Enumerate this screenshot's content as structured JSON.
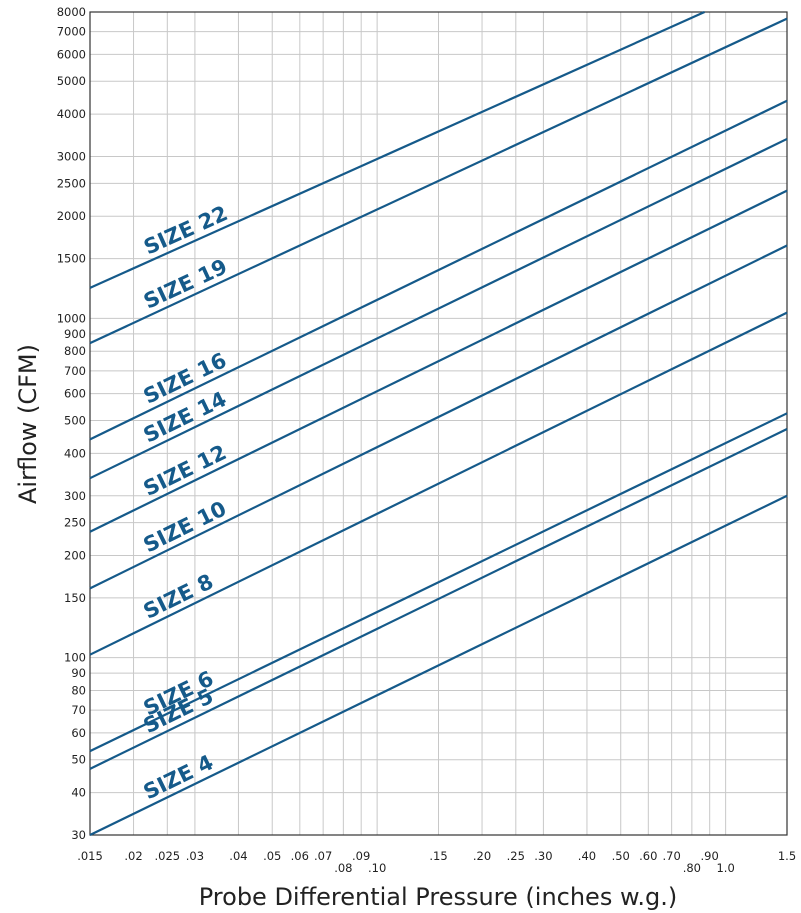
{
  "chart_data": {
    "type": "line",
    "title": "",
    "xlabel": "Probe Differential Pressure (inches w.g.)",
    "ylabel": "Airflow (CFM)",
    "x_scale": "log",
    "y_scale": "log",
    "xlim": [
      0.015,
      1.5
    ],
    "ylim": [
      30,
      8000
    ],
    "grid": true,
    "legend": "none",
    "line_color": "#155a8a",
    "grid_color": "#c8c8c8",
    "x_ticks": [
      {
        "value": 0.015,
        "label": ".015",
        "row": 1
      },
      {
        "value": 0.02,
        "label": ".02",
        "row": 1
      },
      {
        "value": 0.025,
        "label": ".025",
        "row": 1
      },
      {
        "value": 0.03,
        "label": ".03",
        "row": 1
      },
      {
        "value": 0.04,
        "label": ".04",
        "row": 1
      },
      {
        "value": 0.05,
        "label": ".05",
        "row": 1
      },
      {
        "value": 0.06,
        "label": ".06",
        "row": 1
      },
      {
        "value": 0.07,
        "label": ".07",
        "row": 1
      },
      {
        "value": 0.08,
        "label": ".08",
        "row": 2
      },
      {
        "value": 0.09,
        "label": ".09",
        "row": 1
      },
      {
        "value": 0.1,
        "label": ".10",
        "row": 2
      },
      {
        "value": 0.15,
        "label": ".15",
        "row": 1
      },
      {
        "value": 0.2,
        "label": ".20",
        "row": 1
      },
      {
        "value": 0.25,
        "label": ".25",
        "row": 1
      },
      {
        "value": 0.3,
        "label": ".30",
        "row": 1
      },
      {
        "value": 0.4,
        "label": ".40",
        "row": 1
      },
      {
        "value": 0.5,
        "label": ".50",
        "row": 1
      },
      {
        "value": 0.6,
        "label": ".60",
        "row": 1
      },
      {
        "value": 0.7,
        "label": ".70",
        "row": 1
      },
      {
        "value": 0.8,
        "label": ".80",
        "row": 2
      },
      {
        "value": 0.9,
        "label": ".90",
        "row": 1
      },
      {
        "value": 1.0,
        "label": "1.0",
        "row": 2
      },
      {
        "value": 1.5,
        "label": "1.5",
        "row": 1
      }
    ],
    "y_ticks": [
      {
        "value": 30,
        "label": "30"
      },
      {
        "value": 40,
        "label": "40"
      },
      {
        "value": 50,
        "label": "50"
      },
      {
        "value": 60,
        "label": "60"
      },
      {
        "value": 70,
        "label": "70"
      },
      {
        "value": 80,
        "label": "80"
      },
      {
        "value": 90,
        "label": "90"
      },
      {
        "value": 100,
        "label": "100"
      },
      {
        "value": 150,
        "label": "150"
      },
      {
        "value": 200,
        "label": "200"
      },
      {
        "value": 250,
        "label": "250"
      },
      {
        "value": 300,
        "label": "300"
      },
      {
        "value": 400,
        "label": "400"
      },
      {
        "value": 500,
        "label": "500"
      },
      {
        "value": 600,
        "label": "600"
      },
      {
        "value": 700,
        "label": "700"
      },
      {
        "value": 800,
        "label": "800"
      },
      {
        "value": 900,
        "label": "900"
      },
      {
        "value": 1000,
        "label": "1000"
      },
      {
        "value": 1500,
        "label": "1500"
      },
      {
        "value": 2000,
        "label": "2000"
      },
      {
        "value": 2500,
        "label": "2500"
      },
      {
        "value": 3000,
        "label": "3000"
      },
      {
        "value": 4000,
        "label": "4000"
      },
      {
        "value": 5000,
        "label": "5000"
      },
      {
        "value": 6000,
        "label": "6000"
      },
      {
        "value": 7000,
        "label": "7000"
      },
      {
        "value": 8000,
        "label": "8000"
      }
    ],
    "series": [
      {
        "name": "SIZE 22",
        "x": [
          0.015,
          0.87
        ],
        "y": [
          1230,
          8000
        ]
      },
      {
        "name": "SIZE 19",
        "x": [
          0.015,
          1.5
        ],
        "y": [
          845,
          7650
        ]
      },
      {
        "name": "SIZE 16",
        "x": [
          0.015,
          1.5
        ],
        "y": [
          440,
          4380
        ]
      },
      {
        "name": "SIZE 14",
        "x": [
          0.015,
          1.5
        ],
        "y": [
          338,
          3380
        ]
      },
      {
        "name": "SIZE 12",
        "x": [
          0.015,
          1.5
        ],
        "y": [
          235,
          2380
        ]
      },
      {
        "name": "SIZE 10",
        "x": [
          0.015,
          1.5
        ],
        "y": [
          160,
          1640
        ]
      },
      {
        "name": "SIZE 8",
        "x": [
          0.015,
          1.5
        ],
        "y": [
          102,
          1040
        ]
      },
      {
        "name": "SIZE 6",
        "x": [
          0.015,
          1.5
        ],
        "y": [
          53,
          525
        ]
      },
      {
        "name": "SIZE 5",
        "x": [
          0.015,
          1.5
        ],
        "y": [
          47,
          472
        ]
      },
      {
        "name": "SIZE 4",
        "x": [
          0.015,
          1.5
        ],
        "y": [
          30,
          300
        ]
      }
    ]
  }
}
